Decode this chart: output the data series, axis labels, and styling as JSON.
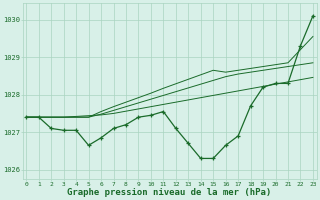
{
  "title": "Graphe pression niveau de la mer (hPa)",
  "background_color": "#d8f0e8",
  "grid_color": "#aad4c0",
  "line_color": "#1a6b2a",
  "x_values": [
    0,
    1,
    2,
    3,
    4,
    5,
    6,
    7,
    8,
    9,
    10,
    11,
    12,
    13,
    14,
    15,
    16,
    17,
    18,
    19,
    20,
    21,
    22,
    23
  ],
  "y_main": [
    1027.4,
    1027.4,
    1027.1,
    1027.05,
    1027.05,
    1026.65,
    1026.85,
    1027.1,
    1027.2,
    1027.4,
    1027.45,
    1027.55,
    1027.1,
    1026.7,
    1026.3,
    1026.3,
    1026.65,
    1026.9,
    1027.7,
    1028.2,
    1028.3,
    1028.3,
    1029.3,
    1030.1
  ],
  "y_trend_top": [
    1027.4,
    1027.4,
    1027.4,
    1027.4,
    1027.4,
    1027.4,
    1027.55,
    1027.68,
    1027.8,
    1027.92,
    1028.04,
    1028.17,
    1028.29,
    1028.41,
    1028.53,
    1028.65,
    1028.6,
    1028.65,
    1028.7,
    1028.75,
    1028.8,
    1028.85,
    1029.2,
    1029.55
  ],
  "y_trend_mid": [
    1027.4,
    1027.4,
    1027.4,
    1027.4,
    1027.4,
    1027.4,
    1027.48,
    1027.58,
    1027.68,
    1027.78,
    1027.88,
    1027.98,
    1028.08,
    1028.18,
    1028.28,
    1028.38,
    1028.48,
    1028.55,
    1028.6,
    1028.65,
    1028.7,
    1028.75,
    1028.8,
    1028.85
  ],
  "y_trend_bot": [
    1027.4,
    1027.4,
    1027.4,
    1027.4,
    1027.42,
    1027.44,
    1027.46,
    1027.5,
    1027.56,
    1027.62,
    1027.68,
    1027.74,
    1027.8,
    1027.86,
    1027.92,
    1027.98,
    1028.04,
    1028.1,
    1028.16,
    1028.22,
    1028.28,
    1028.34,
    1028.4,
    1028.46
  ],
  "ylim": [
    1025.75,
    1030.45
  ],
  "ytick_positions": [
    1026,
    1027,
    1028,
    1029,
    1030
  ],
  "ytick_labels": [
    "1026",
    "1027",
    "1028",
    "1029",
    "1030"
  ],
  "xlim": [
    -0.3,
    23.3
  ],
  "fig_width": 3.2,
  "fig_height": 2.0,
  "dpi": 100
}
